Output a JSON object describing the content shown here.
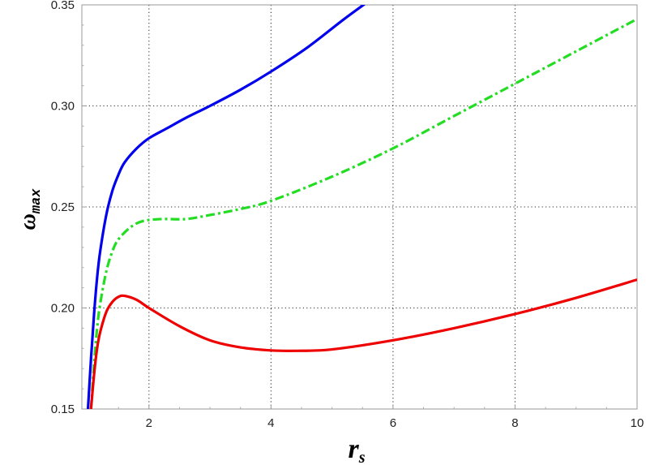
{
  "chart_data": {
    "type": "line",
    "title": "",
    "xlabel": "r_s",
    "ylabel": "ω_max",
    "xlabel_parts": {
      "main": "r",
      "sub": "s"
    },
    "ylabel_parts": {
      "main": "ω",
      "sub": "max"
    },
    "xlim": [
      0.9,
      10
    ],
    "ylim": [
      0.15,
      0.35
    ],
    "xticks": [
      2,
      4,
      6,
      8,
      10
    ],
    "xtick_labels": [
      "2",
      "4",
      "6",
      "8",
      "10"
    ],
    "yticks": [
      0.15,
      0.2,
      0.25,
      0.3,
      0.35
    ],
    "ytick_labels": [
      "0.15",
      "0.20",
      "0.25",
      "0.30",
      "0.35"
    ],
    "grid": true,
    "legend": "none",
    "series": [
      {
        "color": "#0000ee",
        "style": "solid",
        "x": [
          1.0,
          1.05,
          1.1,
          1.15,
          1.2,
          1.3,
          1.4,
          1.5,
          1.6,
          1.8,
          2.0,
          2.3,
          2.6,
          3.0,
          3.5,
          4.0,
          4.6,
          5.2,
          5.7
        ],
        "y": [
          0.15,
          0.175,
          0.197,
          0.215,
          0.228,
          0.246,
          0.258,
          0.266,
          0.272,
          0.279,
          0.284,
          0.289,
          0.294,
          0.3,
          0.308,
          0.317,
          0.329,
          0.343,
          0.354
        ]
      },
      {
        "color": "#22dd22",
        "style": "dashdot",
        "x": [
          1.05,
          1.1,
          1.15,
          1.2,
          1.3,
          1.4,
          1.5,
          1.7,
          1.9,
          2.2,
          2.6,
          3.0,
          3.5,
          4.0,
          5.0,
          6.0,
          7.0,
          8.0,
          9.0,
          10.0
        ],
        "y": [
          0.15,
          0.172,
          0.19,
          0.202,
          0.218,
          0.228,
          0.234,
          0.24,
          0.243,
          0.244,
          0.244,
          0.246,
          0.249,
          0.253,
          0.265,
          0.279,
          0.295,
          0.311,
          0.327,
          0.343
        ]
      },
      {
        "color": "#ee0000",
        "style": "solid",
        "x": [
          1.05,
          1.1,
          1.15,
          1.2,
          1.3,
          1.4,
          1.5,
          1.6,
          1.8,
          2.0,
          2.5,
          3.0,
          3.5,
          4.0,
          4.4,
          5.0,
          6.0,
          7.0,
          8.0,
          9.0,
          10.0
        ],
        "y": [
          0.15,
          0.167,
          0.18,
          0.188,
          0.198,
          0.203,
          0.2055,
          0.206,
          0.204,
          0.2,
          0.191,
          0.184,
          0.1805,
          0.179,
          0.1788,
          0.1795,
          0.184,
          0.19,
          0.197,
          0.205,
          0.214
        ]
      }
    ]
  }
}
